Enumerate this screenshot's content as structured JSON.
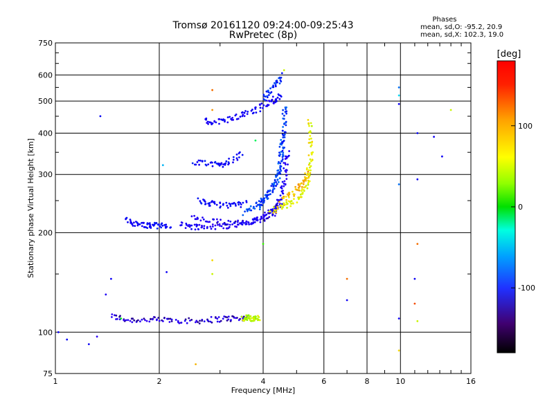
{
  "chart_data": {
    "type": "scatter",
    "title": "Tromsø 20161120 09:24:00-09:25:43",
    "subtitle": "RwPretec (8p)",
    "xlabel": "Frequency [MHz]",
    "ylabel": "Stationary phase Virtual Height [km]",
    "x_scale": "log",
    "y_scale": "log",
    "xlim": [
      1,
      16
    ],
    "ylim": [
      75,
      750
    ],
    "x_ticks": [
      1,
      2,
      4,
      6,
      8,
      10,
      16
    ],
    "x_tick_labels": [
      "1",
      "2",
      "4",
      "6",
      "8",
      "10",
      "16"
    ],
    "y_ticks": [
      75,
      100,
      200,
      300,
      400,
      500,
      600,
      750
    ],
    "y_tick_labels": [
      "75",
      "100",
      "200",
      "300",
      "400",
      "500",
      "600",
      "750"
    ],
    "grid": true,
    "stats": {
      "heading": "Phases",
      "line1": "mean, sd,O: -95.2, 20.9",
      "line2": "mean, sd,X: 102.3, 19.0"
    },
    "colorbar": {
      "label": "[deg]",
      "range": [
        -180,
        180
      ],
      "ticks": [
        100,
        0,
        -100
      ],
      "tick_labels": [
        "100",
        "0",
        "-100"
      ]
    },
    "series": [
      {
        "traces": [
          {
            "x": [
              1.45,
              1.6,
              1.8,
              2.0,
              2.2,
              2.5,
              2.8,
              3.1,
              3.4,
              3.6
            ],
            "y": [
              112,
              109,
              109,
              109,
              109,
              108,
              109,
              110,
              110,
              111
            ],
            "phase": -125
          },
          {
            "x": [
              3.5,
              3.6,
              3.7,
              3.8,
              3.9
            ],
            "y": [
              110,
              111,
              110,
              110,
              110
            ],
            "phase": 95
          },
          {
            "x": [
              1.6,
              1.7,
              1.8,
              1.9,
              2.0,
              2.15
            ],
            "y": [
              218,
              213,
              211,
              210,
              210,
              211
            ],
            "phase": -95
          },
          {
            "x": [
              2.3,
              2.5,
              2.7,
              3.0,
              3.3,
              3.6,
              3.9,
              4.2,
              4.35,
              4.5,
              4.6,
              4.65,
              4.7
            ],
            "y": [
              212,
              209,
              208,
              209,
              211,
              214,
              220,
              230,
              240,
              255,
              280,
              320,
              350
            ],
            "phase": -110
          },
          {
            "x": [
              2.5,
              2.8,
              3.2,
              3.6,
              4.0,
              4.3,
              4.5
            ],
            "y": [
              222,
              216,
              215,
              216,
              220,
              230,
              245
            ],
            "phase": -115
          },
          {
            "x": [
              2.6,
              2.8,
              3.0,
              3.3,
              3.6
            ],
            "y": [
              250,
              245,
              243,
              242,
              245
            ],
            "phase": -95
          },
          {
            "x": [
              3.5,
              3.8,
              4.0,
              4.2,
              4.4,
              4.5,
              4.55,
              4.6,
              4.62
            ],
            "y": [
              230,
              240,
              250,
              265,
              290,
              330,
              380,
              440,
              490
            ],
            "phase": -70
          },
          {
            "x": [
              3.9,
              4.1,
              4.3,
              4.45,
              4.55,
              4.62
            ],
            "y": [
              240,
              258,
              280,
              310,
              360,
              420
            ],
            "phase": -75
          },
          {
            "x": [
              2.5,
              2.8,
              3.0,
              3.2,
              3.5
            ],
            "y": [
              325,
              325,
              320,
              330,
              345
            ],
            "phase": -95
          },
          {
            "x": [
              2.7,
              2.9,
              3.2,
              3.5,
              3.8,
              4.1,
              4.3,
              4.5
            ],
            "y": [
              435,
              432,
              440,
              455,
              470,
              490,
              505,
              520
            ],
            "phase": -105
          },
          {
            "x": [
              4.0,
              4.2,
              4.4,
              4.5
            ],
            "y": [
              510,
              530,
              570,
              600
            ],
            "phase": -80
          },
          {
            "x": [
              4.2,
              4.5,
              4.8,
              5.1,
              5.3,
              5.45,
              5.5,
              5.5,
              5.45
            ],
            "y": [
              232,
              238,
              245,
              255,
              272,
              300,
              340,
              390,
              440
            ],
            "phase": 110
          },
          {
            "x": [
              4.5,
              4.8,
              5.1,
              5.3,
              5.4
            ],
            "y": [
              250,
              260,
              275,
              290,
              310
            ],
            "phase": 130
          }
        ],
        "points": [
          {
            "x": 1.35,
            "y": 450,
            "phase": -90
          },
          {
            "x": 1.02,
            "y": 100,
            "phase": -100
          },
          {
            "x": 1.08,
            "y": 95,
            "phase": -90
          },
          {
            "x": 1.25,
            "y": 92,
            "phase": -100
          },
          {
            "x": 1.32,
            "y": 97,
            "phase": -120
          },
          {
            "x": 1.4,
            "y": 130,
            "phase": -110
          },
          {
            "x": 1.45,
            "y": 145,
            "phase": -100
          },
          {
            "x": 1.55,
            "y": 110,
            "phase": 40
          },
          {
            "x": 2.05,
            "y": 320,
            "phase": -40
          },
          {
            "x": 2.1,
            "y": 152,
            "phase": -100
          },
          {
            "x": 2.55,
            "y": 80,
            "phase": 130
          },
          {
            "x": 2.85,
            "y": 540,
            "phase": 150
          },
          {
            "x": 2.85,
            "y": 470,
            "phase": 140
          },
          {
            "x": 2.85,
            "y": 165,
            "phase": 120
          },
          {
            "x": 2.85,
            "y": 150,
            "phase": 100
          },
          {
            "x": 3.8,
            "y": 380,
            "phase": 20
          },
          {
            "x": 4.0,
            "y": 185,
            "phase": 60
          },
          {
            "x": 4.6,
            "y": 620,
            "phase": 100
          },
          {
            "x": 7.0,
            "y": 145,
            "phase": 150
          },
          {
            "x": 7.0,
            "y": 125,
            "phase": -100
          },
          {
            "x": 9.9,
            "y": 550,
            "phase": -60
          },
          {
            "x": 9.9,
            "y": 520,
            "phase": -30
          },
          {
            "x": 9.9,
            "y": 490,
            "phase": -100
          },
          {
            "x": 9.9,
            "y": 280,
            "phase": -60
          },
          {
            "x": 9.9,
            "y": 110,
            "phase": -100
          },
          {
            "x": 9.9,
            "y": 88,
            "phase": 120
          },
          {
            "x": 11.2,
            "y": 400,
            "phase": -90
          },
          {
            "x": 11.2,
            "y": 290,
            "phase": -100
          },
          {
            "x": 11.2,
            "y": 185,
            "phase": 150
          },
          {
            "x": 11.0,
            "y": 145,
            "phase": -100
          },
          {
            "x": 11.0,
            "y": 122,
            "phase": 160
          },
          {
            "x": 11.2,
            "y": 108,
            "phase": 100
          },
          {
            "x": 12.5,
            "y": 390,
            "phase": -100
          },
          {
            "x": 13.2,
            "y": 340,
            "phase": -100
          },
          {
            "x": 14.0,
            "y": 470,
            "phase": 100
          }
        ]
      }
    ]
  }
}
